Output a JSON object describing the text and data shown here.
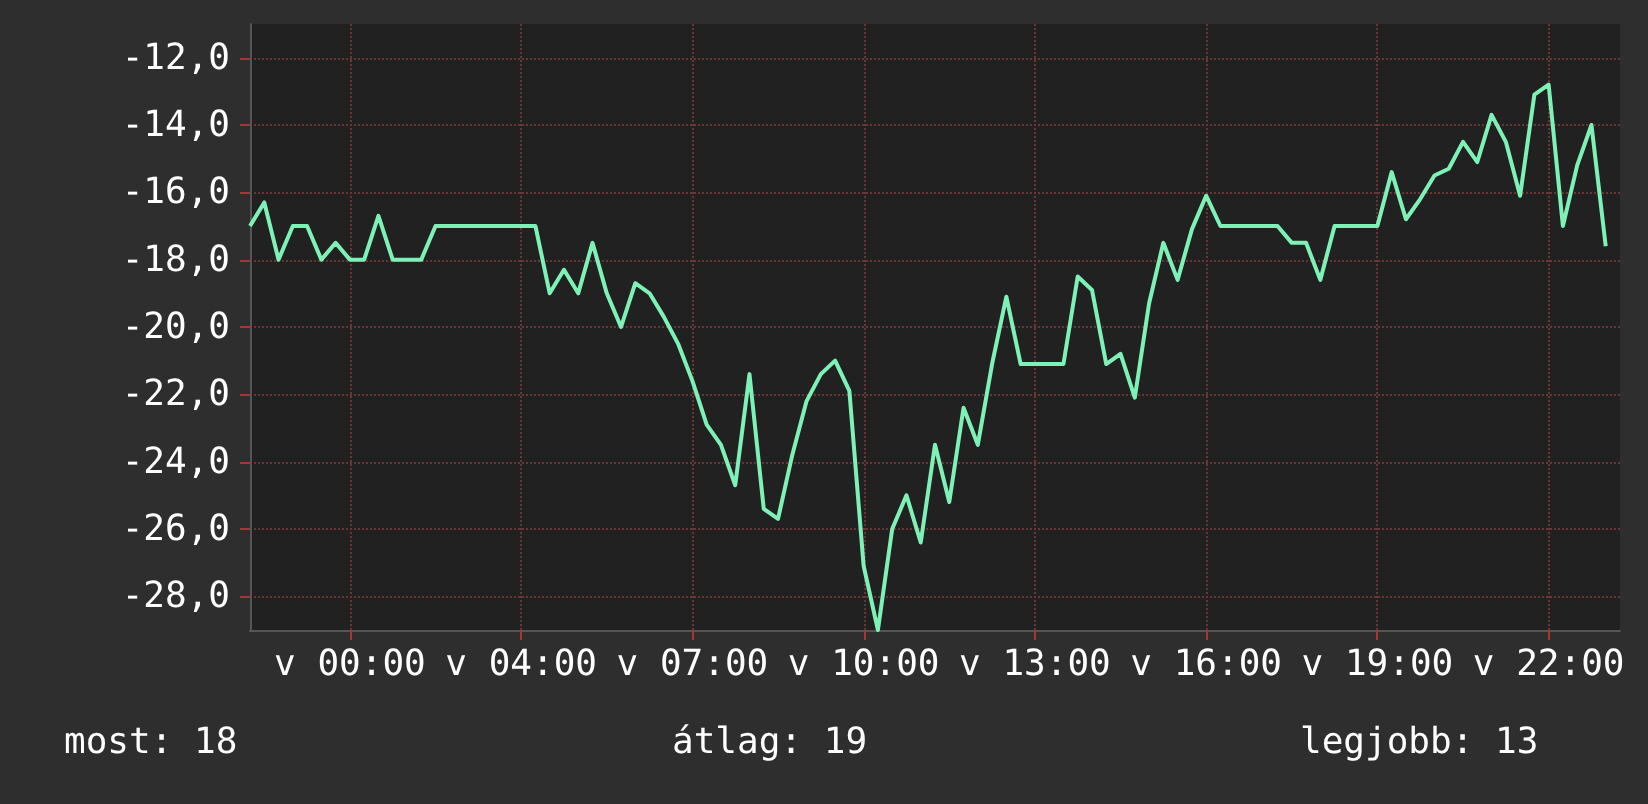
{
  "chart_data": {
    "type": "line",
    "color": "#7ef2b6",
    "grid": true,
    "categories": [
      null,
      null,
      null,
      null,
      null,
      null,
      null,
      "v 00:00",
      null,
      null,
      null,
      null,
      null,
      null,
      null,
      null,
      null,
      null,
      null,
      "v 04:00",
      null,
      null,
      null,
      null,
      null,
      null,
      null,
      null,
      null,
      null,
      null,
      "v 07:00",
      null,
      null,
      null,
      null,
      null,
      null,
      null,
      null,
      null,
      null,
      null,
      "v 10:00",
      null,
      null,
      null,
      null,
      null,
      null,
      null,
      null,
      null,
      null,
      null,
      "v 13:00",
      null,
      null,
      null,
      null,
      null,
      null,
      null,
      null,
      null,
      null,
      null,
      "v 16:00",
      null,
      null,
      null,
      null,
      null,
      null,
      null,
      null,
      null,
      null,
      null,
      "v 19:00",
      null,
      null,
      null,
      null,
      null,
      null,
      null,
      null,
      null,
      null,
      null,
      "v 22:00",
      null,
      null,
      null,
      null,
      null
    ],
    "values": [
      -17,
      -16.3,
      -18,
      -17,
      -17,
      -18,
      -17.5,
      -18,
      -18,
      -16.7,
      -18,
      -18,
      -18,
      -17,
      -17,
      -17,
      -17,
      -17,
      -17,
      -17,
      -17,
      -19,
      -18.3,
      -19,
      -17.5,
      -19,
      -20,
      -18.7,
      -19,
      -19.7,
      -20.5,
      -21.6,
      -22.9,
      -23.5,
      -24.7,
      -21.4,
      -25.4,
      -25.7,
      -23.8,
      -22.2,
      -21.4,
      -21,
      -21.9,
      -27.1,
      -29,
      -26,
      -25,
      -26.4,
      -23.5,
      -25.2,
      -22.4,
      -23.5,
      -21.1,
      -19.1,
      -21.1,
      -21.1,
      -21.1,
      -21.1,
      -18.5,
      -18.9,
      -21.1,
      -20.8,
      -22.1,
      -19.3,
      -17.5,
      -18.6,
      -17.1,
      -16.1,
      -17,
      -17,
      -17,
      -17,
      -17,
      -17.5,
      -17.5,
      -18.6,
      -17,
      -17,
      -17,
      -17,
      -15.4,
      -16.8,
      -16.2,
      -15.5,
      -15.3,
      -14.5,
      -15.1,
      -13.7,
      -14.5,
      -16.1,
      -13.1,
      -12.8,
      -17,
      -15.2,
      -14,
      -17.6,
      null
    ],
    "ylim": [
      -29,
      -11
    ],
    "yticks": [
      {
        "value": -28,
        "label": "-28,0"
      },
      {
        "value": -26,
        "label": "-26,0"
      },
      {
        "value": -24,
        "label": "-24,0"
      },
      {
        "value": -22,
        "label": "-22,0"
      },
      {
        "value": -20,
        "label": "-20,0"
      },
      {
        "value": -18,
        "label": "-18,0"
      },
      {
        "value": -16,
        "label": "-16,0"
      },
      {
        "value": -14,
        "label": "-14,0"
      },
      {
        "value": -12,
        "label": "-12,0"
      }
    ],
    "annotations": [
      "most: 18",
      "átlag: 19",
      "legjobb: 13"
    ]
  }
}
